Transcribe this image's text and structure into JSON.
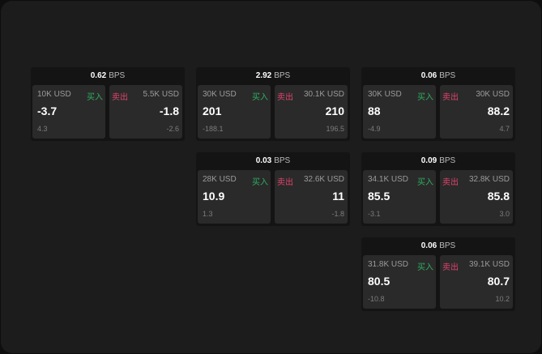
{
  "labels": {
    "buy": "买入",
    "sell": "卖出",
    "unit": "BPS"
  },
  "colors": {
    "buy": "#2fae5f",
    "sell": "#e0436d"
  },
  "cards": [
    {
      "spread": "0.62",
      "buy": {
        "size": "10K USD",
        "price": "-3.7",
        "change": "4.3"
      },
      "sell": {
        "size": "5.5K USD",
        "price": "-1.8",
        "change": "-2.6"
      }
    },
    {
      "spread": "2.92",
      "buy": {
        "size": "30K USD",
        "price": "201",
        "change": "-188.1"
      },
      "sell": {
        "size": "30.1K USD",
        "price": "210",
        "change": "196.5"
      }
    },
    {
      "spread": "0.06",
      "buy": {
        "size": "30K USD",
        "price": "88",
        "change": "-4.9"
      },
      "sell": {
        "size": "30K USD",
        "price": "88.2",
        "change": "4.7"
      }
    },
    {
      "spread": "0.03",
      "buy": {
        "size": "28K USD",
        "price": "10.9",
        "change": "1.3"
      },
      "sell": {
        "size": "32.6K USD",
        "price": "11",
        "change": "-1.8"
      }
    },
    {
      "spread": "0.09",
      "buy": {
        "size": "34.1K USD",
        "price": "85.5",
        "change": "-3.1"
      },
      "sell": {
        "size": "32.8K USD",
        "price": "85.8",
        "change": "3.0"
      }
    },
    {
      "spread": "0.06",
      "buy": {
        "size": "31.8K USD",
        "price": "80.5",
        "change": "-10.8"
      },
      "sell": {
        "size": "39.1K USD",
        "price": "80.7",
        "change": "10.2"
      }
    }
  ]
}
